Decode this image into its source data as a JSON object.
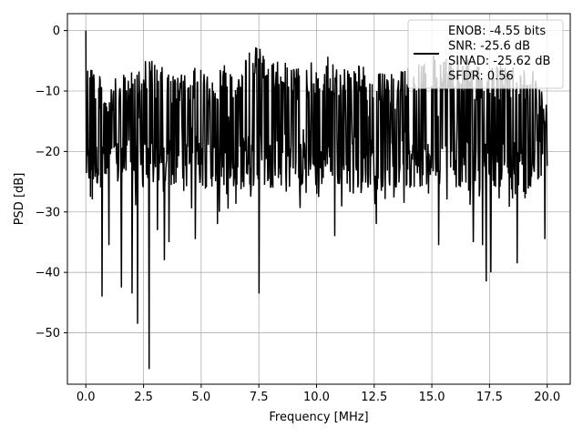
{
  "chart_data": {
    "type": "line",
    "xlabel": "Frequency [MHz]",
    "ylabel": "PSD [dB]",
    "xlim": [
      -0.8,
      21.0
    ],
    "ylim": [
      -58.5,
      2.8
    ],
    "x_ticks": [
      0.0,
      2.5,
      5.0,
      7.5,
      10.0,
      12.5,
      15.0,
      17.5,
      20.0
    ],
    "x_tick_labels": [
      "0.0",
      "2.5",
      "5.0",
      "7.5",
      "10.0",
      "12.5",
      "15.0",
      "17.5",
      "20.0"
    ],
    "y_ticks": [
      0,
      -10,
      -20,
      -30,
      -40,
      -50
    ],
    "y_tick_labels": [
      "0",
      "−10",
      "−20",
      "−30",
      "−40",
      "−50"
    ],
    "grid": true,
    "legend_position": "top-right",
    "legend_entries": [
      "ENOB: -4.55 bits",
      "SNR: -25.6 dB",
      "SINAD: -25.62 dB",
      "SFDR: 0.56"
    ],
    "series": [
      {
        "color": "#000000",
        "x_range": [
          0.0,
          20.0
        ],
        "points": 1000,
        "envelope_top": [
          [
            0.0,
            0.0
          ],
          [
            0.3,
            -5
          ],
          [
            0.8,
            -9
          ],
          [
            1.2,
            -8
          ],
          [
            1.8,
            -7
          ],
          [
            2.4,
            -4
          ],
          [
            3.0,
            -5
          ],
          [
            3.6,
            -7
          ],
          [
            4.2,
            -7
          ],
          [
            4.8,
            -6
          ],
          [
            5.4,
            -7
          ],
          [
            6.0,
            -5
          ],
          [
            6.6,
            -6
          ],
          [
            7.0,
            -4
          ],
          [
            7.5,
            -1
          ],
          [
            8.0,
            -5
          ],
          [
            8.6,
            -5
          ],
          [
            9.2,
            -6
          ],
          [
            9.8,
            -5
          ],
          [
            10.4,
            -4
          ],
          [
            11.0,
            -6
          ],
          [
            11.6,
            -5
          ],
          [
            12.2,
            -6
          ],
          [
            12.8,
            -7
          ],
          [
            13.4,
            -7
          ],
          [
            14.0,
            -5
          ],
          [
            14.6,
            -4
          ],
          [
            15.2,
            -4
          ],
          [
            15.8,
            -5
          ],
          [
            16.4,
            -4
          ],
          [
            17.0,
            -6
          ],
          [
            17.6,
            -6
          ],
          [
            18.2,
            -5
          ],
          [
            18.8,
            -6
          ],
          [
            19.4,
            -6
          ],
          [
            20.0,
            -11
          ]
        ],
        "dips": [
          [
            0.0,
            -24
          ],
          [
            0.7,
            -44
          ],
          [
            1.0,
            -35.5
          ],
          [
            1.55,
            -42.5
          ],
          [
            2.0,
            -43.5
          ],
          [
            2.25,
            -48.5
          ],
          [
            2.75,
            -56
          ],
          [
            3.1,
            -33
          ],
          [
            3.4,
            -38
          ],
          [
            3.6,
            -35
          ],
          [
            4.75,
            -34.5
          ],
          [
            5.7,
            -32
          ],
          [
            7.5,
            -43.5
          ],
          [
            8.0,
            -26
          ],
          [
            10.0,
            -27
          ],
          [
            10.8,
            -34
          ],
          [
            12.6,
            -32
          ],
          [
            13.8,
            -28.5
          ],
          [
            15.3,
            -35.5
          ],
          [
            16.8,
            -35
          ],
          [
            17.2,
            -35.5
          ],
          [
            17.35,
            -41.5
          ],
          [
            17.55,
            -40
          ],
          [
            18.7,
            -38.5
          ],
          [
            19.9,
            -34.5
          ]
        ]
      }
    ]
  }
}
